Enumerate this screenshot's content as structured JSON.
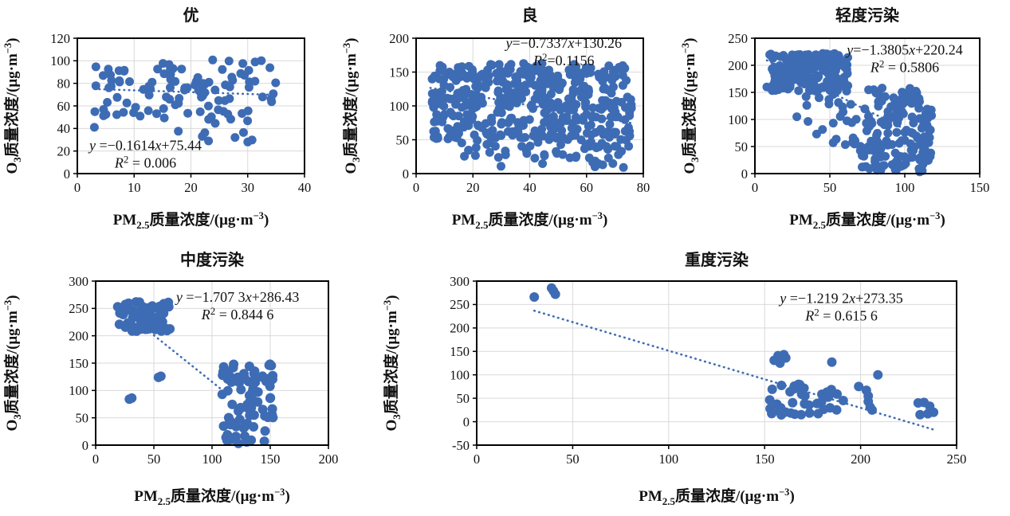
{
  "style": {
    "point_color": "#3e6cb4",
    "trend_color": "#3e6cb4",
    "grid_color": "#d9d9d9",
    "axis_color": "#000000",
    "text_color": "#111111"
  },
  "axis_labels": {
    "x": {
      "pre": "PM",
      "sub": "2.5",
      "mid": "质量浓度/(μg·m",
      "sup": "−3",
      "post": ")"
    },
    "y": {
      "pre": "O",
      "sub": "3",
      "mid": "质量浓度/(μg·m",
      "sup": "−3",
      "post": ")"
    }
  },
  "chart_data": [
    {
      "type": "scatter",
      "title": "优",
      "xlim": [
        0,
        40
      ],
      "ylim": [
        0,
        120
      ],
      "xticks": [
        0,
        10,
        20,
        30,
        40
      ],
      "yticks": [
        0,
        20,
        40,
        60,
        80,
        100,
        120
      ],
      "grid": true,
      "equation": {
        "y": "y",
        "a": " =−0.1614",
        "x": "x",
        "b": "+75.44"
      },
      "r2": {
        "R": "R",
        "sup": "2",
        "val": " = 0.006"
      },
      "annotation_pos": {
        "x": 12,
        "y": 21
      },
      "trendline": {
        "x1": 3,
        "y1": 74.96,
        "x2": 35,
        "y2": 69.79
      },
      "clusters": [
        {
          "x": [
            3,
            35
          ],
          "y": [
            48,
            101
          ],
          "n": 105
        },
        {
          "x": [
            17,
            31
          ],
          "y": [
            27,
            47
          ],
          "n": 8
        }
      ],
      "points": [
        [
          3,
          41
        ],
        [
          22,
          33
        ],
        [
          30,
          28
        ]
      ]
    },
    {
      "type": "scatter",
      "title": "良",
      "xlim": [
        0,
        80
      ],
      "ylim": [
        0,
        200
      ],
      "xticks": [
        0,
        20,
        40,
        60,
        80
      ],
      "yticks": [
        0,
        50,
        100,
        150,
        200
      ],
      "grid": true,
      "equation": {
        "y": "y",
        "a": "=−0.7337",
        "x": "x",
        "b": "+130.26"
      },
      "r2": {
        "R": "R",
        "sup": "2",
        "val": "=0.1156"
      },
      "annotation_pos": {
        "x": 52,
        "y": 186
      },
      "trendline": {
        "x1": 5,
        "y1": 126.59,
        "x2": 76,
        "y2": 74.5
      },
      "clusters": [
        {
          "x": [
            6,
            76
          ],
          "y": [
            48,
            163
          ],
          "n": 430
        },
        {
          "x": [
            16,
            76
          ],
          "y": [
            22,
            48
          ],
          "n": 45
        },
        {
          "x": [
            28,
            74
          ],
          "y": [
            6,
            22
          ],
          "n": 9
        },
        {
          "x": [
            5,
            10
          ],
          "y": [
            80,
            160
          ],
          "n": 14
        }
      ],
      "points": [
        [
          29,
          24
        ],
        [
          63,
          10
        ],
        [
          73,
          9
        ]
      ]
    },
    {
      "type": "scatter",
      "title": "轻度污染",
      "xlim": [
        0,
        150
      ],
      "ylim": [
        0,
        250
      ],
      "xticks": [
        0,
        50,
        100,
        150
      ],
      "yticks": [
        0,
        50,
        100,
        150,
        200,
        250
      ],
      "grid": true,
      "equation": {
        "y": "y",
        "a": "=−1.3805",
        "x": "x",
        "b": "+220.24"
      },
      "r2": {
        "R": "R",
        "sup": "2",
        "val": " = 0.5806"
      },
      "annotation_pos": {
        "x": 100,
        "y": 220
      },
      "trendline": {
        "x1": 8,
        "y1": 209.2,
        "x2": 118,
        "y2": 57.3
      },
      "clusters": [
        {
          "x": [
            9,
            62
          ],
          "y": [
            152,
            222
          ],
          "n": 210
        },
        {
          "x": [
            70,
            118
          ],
          "y": [
            2,
            122
          ],
          "n": 135
        },
        {
          "x": [
            72,
            114
          ],
          "y": [
            122,
            160
          ],
          "n": 30
        },
        {
          "x": [
            33,
            68
          ],
          "y": [
            50,
            148
          ],
          "n": 24
        }
      ],
      "points": [
        [
          28,
          105
        ],
        [
          8,
          160
        ],
        [
          64,
          128
        ]
      ]
    },
    {
      "type": "scatter",
      "title": "中度污染",
      "xlim": [
        0,
        200
      ],
      "ylim": [
        0,
        300
      ],
      "xticks": [
        0,
        50,
        100,
        150,
        200
      ],
      "yticks": [
        0,
        50,
        100,
        150,
        200,
        250,
        300
      ],
      "grid": true,
      "equation": {
        "y": "y",
        "a": " =−1.707 3",
        "x": "x",
        "b": "+286.43"
      },
      "r2": {
        "R": "R",
        "sup": "2",
        "val": " = 0.844 6"
      },
      "annotation_pos": {
        "x": 122,
        "y": 262
      },
      "trendline": {
        "x1": 17,
        "y1": 257.4,
        "x2": 112,
        "y2": 95.2
      },
      "clusters": [
        {
          "x": [
            19,
            64
          ],
          "y": [
            208,
            262
          ],
          "n": 85
        },
        {
          "x": [
            108,
            153
          ],
          "y": [
            2,
            148
          ],
          "n": 88
        }
      ],
      "points": [
        [
          29,
          84
        ],
        [
          31,
          86
        ],
        [
          54,
          124
        ],
        [
          56,
          126
        ],
        [
          19,
          253
        ]
      ]
    },
    {
      "type": "scatter",
      "title": "重度污染",
      "xlim": [
        0,
        250
      ],
      "ylim": [
        -50,
        300
      ],
      "xticks": [
        0,
        50,
        100,
        150,
        200,
        250
      ],
      "yticks": [
        -50,
        0,
        50,
        100,
        150,
        200,
        250,
        300
      ],
      "grid": true,
      "equation": {
        "y": "y",
        "a": " =−1.219 2",
        "x": "x",
        "b": "+273.35"
      },
      "r2": {
        "R": "R",
        "sup": "2",
        "val": " = 0.615 6"
      },
      "annotation_pos": {
        "x": 190,
        "y": 253
      },
      "trendline": {
        "x1": 30,
        "y1": 236.8,
        "x2": 238,
        "y2": -16.8
      },
      "clusters": [
        {
          "x": [
            150,
            196
          ],
          "y": [
            13,
            80
          ],
          "n": 40
        }
      ],
      "points": [
        [
          30,
          266
        ],
        [
          39,
          285
        ],
        [
          40,
          279
        ],
        [
          41,
          272
        ],
        [
          155,
          131
        ],
        [
          157,
          141
        ],
        [
          158,
          125
        ],
        [
          160,
          143
        ],
        [
          161,
          136
        ],
        [
          185,
          127
        ],
        [
          209,
          100
        ],
        [
          199,
          75
        ],
        [
          203,
          67
        ],
        [
          204,
          55
        ],
        [
          204,
          43
        ],
        [
          205,
          31
        ],
        [
          206,
          25
        ],
        [
          230,
          40
        ],
        [
          233,
          41
        ],
        [
          236,
          33
        ],
        [
          231,
          15
        ],
        [
          235,
          17
        ],
        [
          238,
          20
        ]
      ]
    }
  ]
}
